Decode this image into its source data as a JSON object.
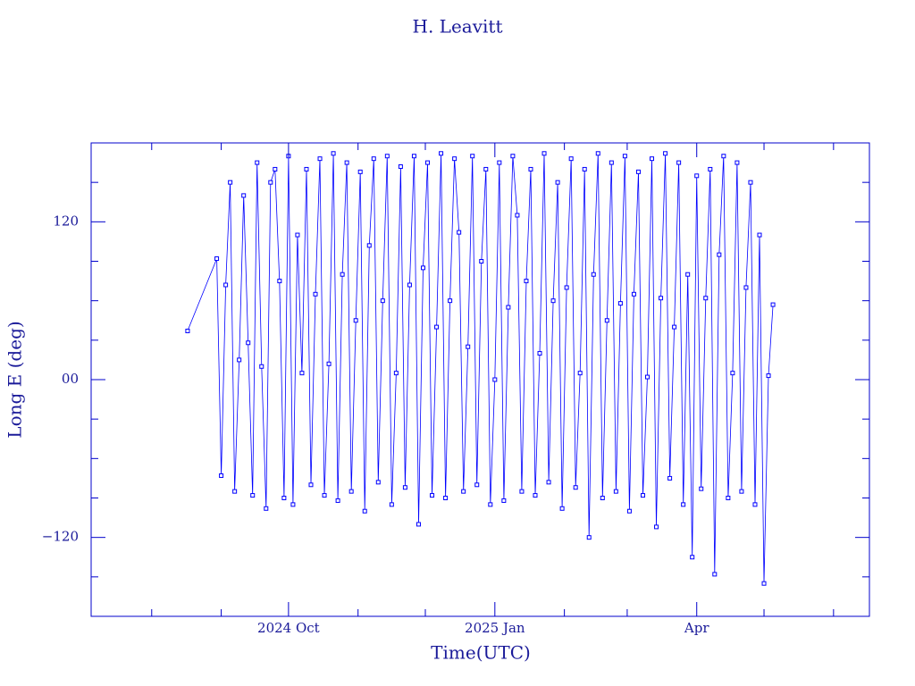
{
  "chart_data": {
    "type": "line",
    "title": "H. Leavitt",
    "xlabel": "Time(UTC)",
    "ylabel": "Long E (deg)",
    "color": "#0000ff",
    "axis_color": "#0000cc",
    "xlim": [
      "2024-07-05",
      "2025-06-17"
    ],
    "xticks": [
      {
        "value": "2024-10-01",
        "label": "2024 Oct"
      },
      {
        "value": "2025-01-01",
        "label": "2025 Jan"
      },
      {
        "value": "2025-04-01",
        "label": "Apr"
      }
    ],
    "xminorticks": [
      "2024-08-01",
      "2024-09-01",
      "2024-11-01",
      "2024-12-01",
      "2025-02-01",
      "2025-03-01",
      "2025-05-01",
      "2025-06-01"
    ],
    "ylim": [
      -180,
      180
    ],
    "yticks": [
      {
        "value": -120,
        "label": "−120"
      },
      {
        "value": 0,
        "label": "00"
      },
      120
    ],
    "yminorticks": [
      -150,
      -90,
      -60,
      -30,
      30,
      60,
      90,
      150
    ],
    "x": [
      "2024-08-17",
      "2024-08-30",
      "2024-09-01",
      "2024-09-03",
      "2024-09-05",
      "2024-09-07",
      "2024-09-09",
      "2024-09-11",
      "2024-09-13",
      "2024-09-15",
      "2024-09-17",
      "2024-09-19",
      "2024-09-21",
      "2024-09-23",
      "2024-09-25",
      "2024-09-27",
      "2024-09-29",
      "2024-10-01",
      "2024-10-03",
      "2024-10-05",
      "2024-10-07",
      "2024-10-09",
      "2024-10-11",
      "2024-10-13",
      "2024-10-15",
      "2024-10-17",
      "2024-10-19",
      "2024-10-21",
      "2024-10-23",
      "2024-10-25",
      "2024-10-27",
      "2024-10-29",
      "2024-10-31",
      "2024-11-02",
      "2024-11-04",
      "2024-11-06",
      "2024-11-08",
      "2024-11-10",
      "2024-11-12",
      "2024-11-14",
      "2024-11-16",
      "2024-11-18",
      "2024-11-20",
      "2024-11-22",
      "2024-11-24",
      "2024-11-26",
      "2024-11-28",
      "2024-11-30",
      "2024-12-02",
      "2024-12-04",
      "2024-12-06",
      "2024-12-08",
      "2024-12-10",
      "2024-12-12",
      "2024-12-14",
      "2024-12-16",
      "2024-12-18",
      "2024-12-20",
      "2024-12-22",
      "2024-12-24",
      "2024-12-26",
      "2024-12-28",
      "2024-12-30",
      "2025-01-01",
      "2025-01-03",
      "2025-01-05",
      "2025-01-07",
      "2025-01-09",
      "2025-01-11",
      "2025-01-13",
      "2025-01-15",
      "2025-01-17",
      "2025-01-19",
      "2025-01-21",
      "2025-01-23",
      "2025-01-25",
      "2025-01-27",
      "2025-01-29",
      "2025-01-31",
      "2025-02-02",
      "2025-02-04",
      "2025-02-06",
      "2025-02-08",
      "2025-02-10",
      "2025-02-12",
      "2025-02-14",
      "2025-02-16",
      "2025-02-18",
      "2025-02-20",
      "2025-02-22",
      "2025-02-24",
      "2025-02-26",
      "2025-02-28",
      "2025-03-02",
      "2025-03-04",
      "2025-03-06",
      "2025-03-08",
      "2025-03-10",
      "2025-03-12",
      "2025-03-14",
      "2025-03-16",
      "2025-03-18",
      "2025-03-20",
      "2025-03-22",
      "2025-03-24",
      "2025-03-26",
      "2025-03-28",
      "2025-03-30",
      "2025-04-01",
      "2025-04-03",
      "2025-04-05",
      "2025-04-07",
      "2025-04-09",
      "2025-04-11",
      "2025-04-13",
      "2025-04-15",
      "2025-04-17",
      "2025-04-19",
      "2025-04-21",
      "2025-04-23",
      "2025-04-25",
      "2025-04-27",
      "2025-04-29",
      "2025-05-01",
      "2025-05-03",
      "2025-05-05"
    ],
    "values": [
      37,
      92,
      -73,
      72,
      150,
      -85,
      15,
      140,
      28,
      -88,
      165,
      10,
      -98,
      150,
      160,
      75,
      -90,
      170,
      -95,
      110,
      5,
      160,
      -80,
      65,
      168,
      -88,
      12,
      172,
      -92,
      80,
      165,
      -85,
      45,
      158,
      -100,
      102,
      168,
      -78,
      60,
      170,
      -95,
      5,
      162,
      -82,
      72,
      170,
      -110,
      85,
      165,
      -88,
      40,
      172,
      -90,
      60,
      168,
      112,
      -85,
      25,
      170,
      -80,
      90,
      160,
      -95,
      0,
      165,
      -92,
      55,
      170,
      125,
      -85,
      75,
      160,
      -88,
      20,
      172,
      -78,
      60,
      150,
      -98,
      70,
      168,
      -82,
      5,
      160,
      -120,
      80,
      172,
      -90,
      45,
      165,
      -85,
      58,
      170,
      -100,
      65,
      158,
      -88,
      2,
      168,
      -112,
      62,
      172,
      -75,
      40,
      165,
      -95,
      80,
      -135,
      155,
      -83,
      62,
      160,
      -148,
      95,
      170,
      -90,
      5,
      165,
      -85,
      70,
      150,
      -95,
      110,
      -155,
      3,
      57
    ]
  }
}
